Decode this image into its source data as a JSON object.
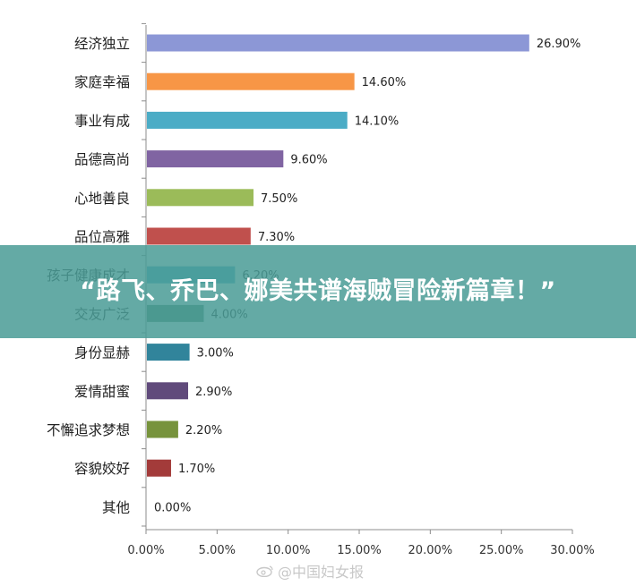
{
  "chart_data": {
    "type": "bar",
    "orientation": "horizontal",
    "categories": [
      "经济独立",
      "家庭幸福",
      "事业有成",
      "品德高尚",
      "心地善良",
      "品位高雅",
      "孩子健康成才",
      "交友广泛",
      "身份显赫",
      "爱情甜蜜",
      "不懈追求梦想",
      "容貌姣好",
      "其他"
    ],
    "labels": [
      "26.90%",
      "14.60%",
      "14.10%",
      "9.60%",
      "7.50%",
      "7.30%",
      "6.20%",
      "4.00%",
      "3.00%",
      "2.90%",
      "2.20%",
      "1.70%",
      "0.00%"
    ],
    "values": [
      26.9,
      14.6,
      14.1,
      9.6,
      7.5,
      7.3,
      6.2,
      4.0,
      3.0,
      2.9,
      2.2,
      1.7,
      0.0
    ],
    "xlim": [
      0,
      30
    ],
    "xticks": [
      "0.00%",
      "5.00%",
      "10.00%",
      "15.00%",
      "20.00%",
      "25.00%",
      "30.00%"
    ],
    "grid": false,
    "colors": [
      "#8c97d6",
      "#f79646",
      "#4bacc6",
      "#8064a2",
      "#9bbb59",
      "#c0504d",
      "#4bacc6",
      "#4e8a6e",
      "#31849b",
      "#604a7b",
      "#77933c",
      "#a33b3a",
      "#4f81bd"
    ]
  },
  "banner": {
    "text": "“路飞、乔巴、娜美共谱海贼冒险新篇章！”"
  },
  "watermark": {
    "text": "@中国妇女报",
    "icon": "weibo-icon"
  }
}
